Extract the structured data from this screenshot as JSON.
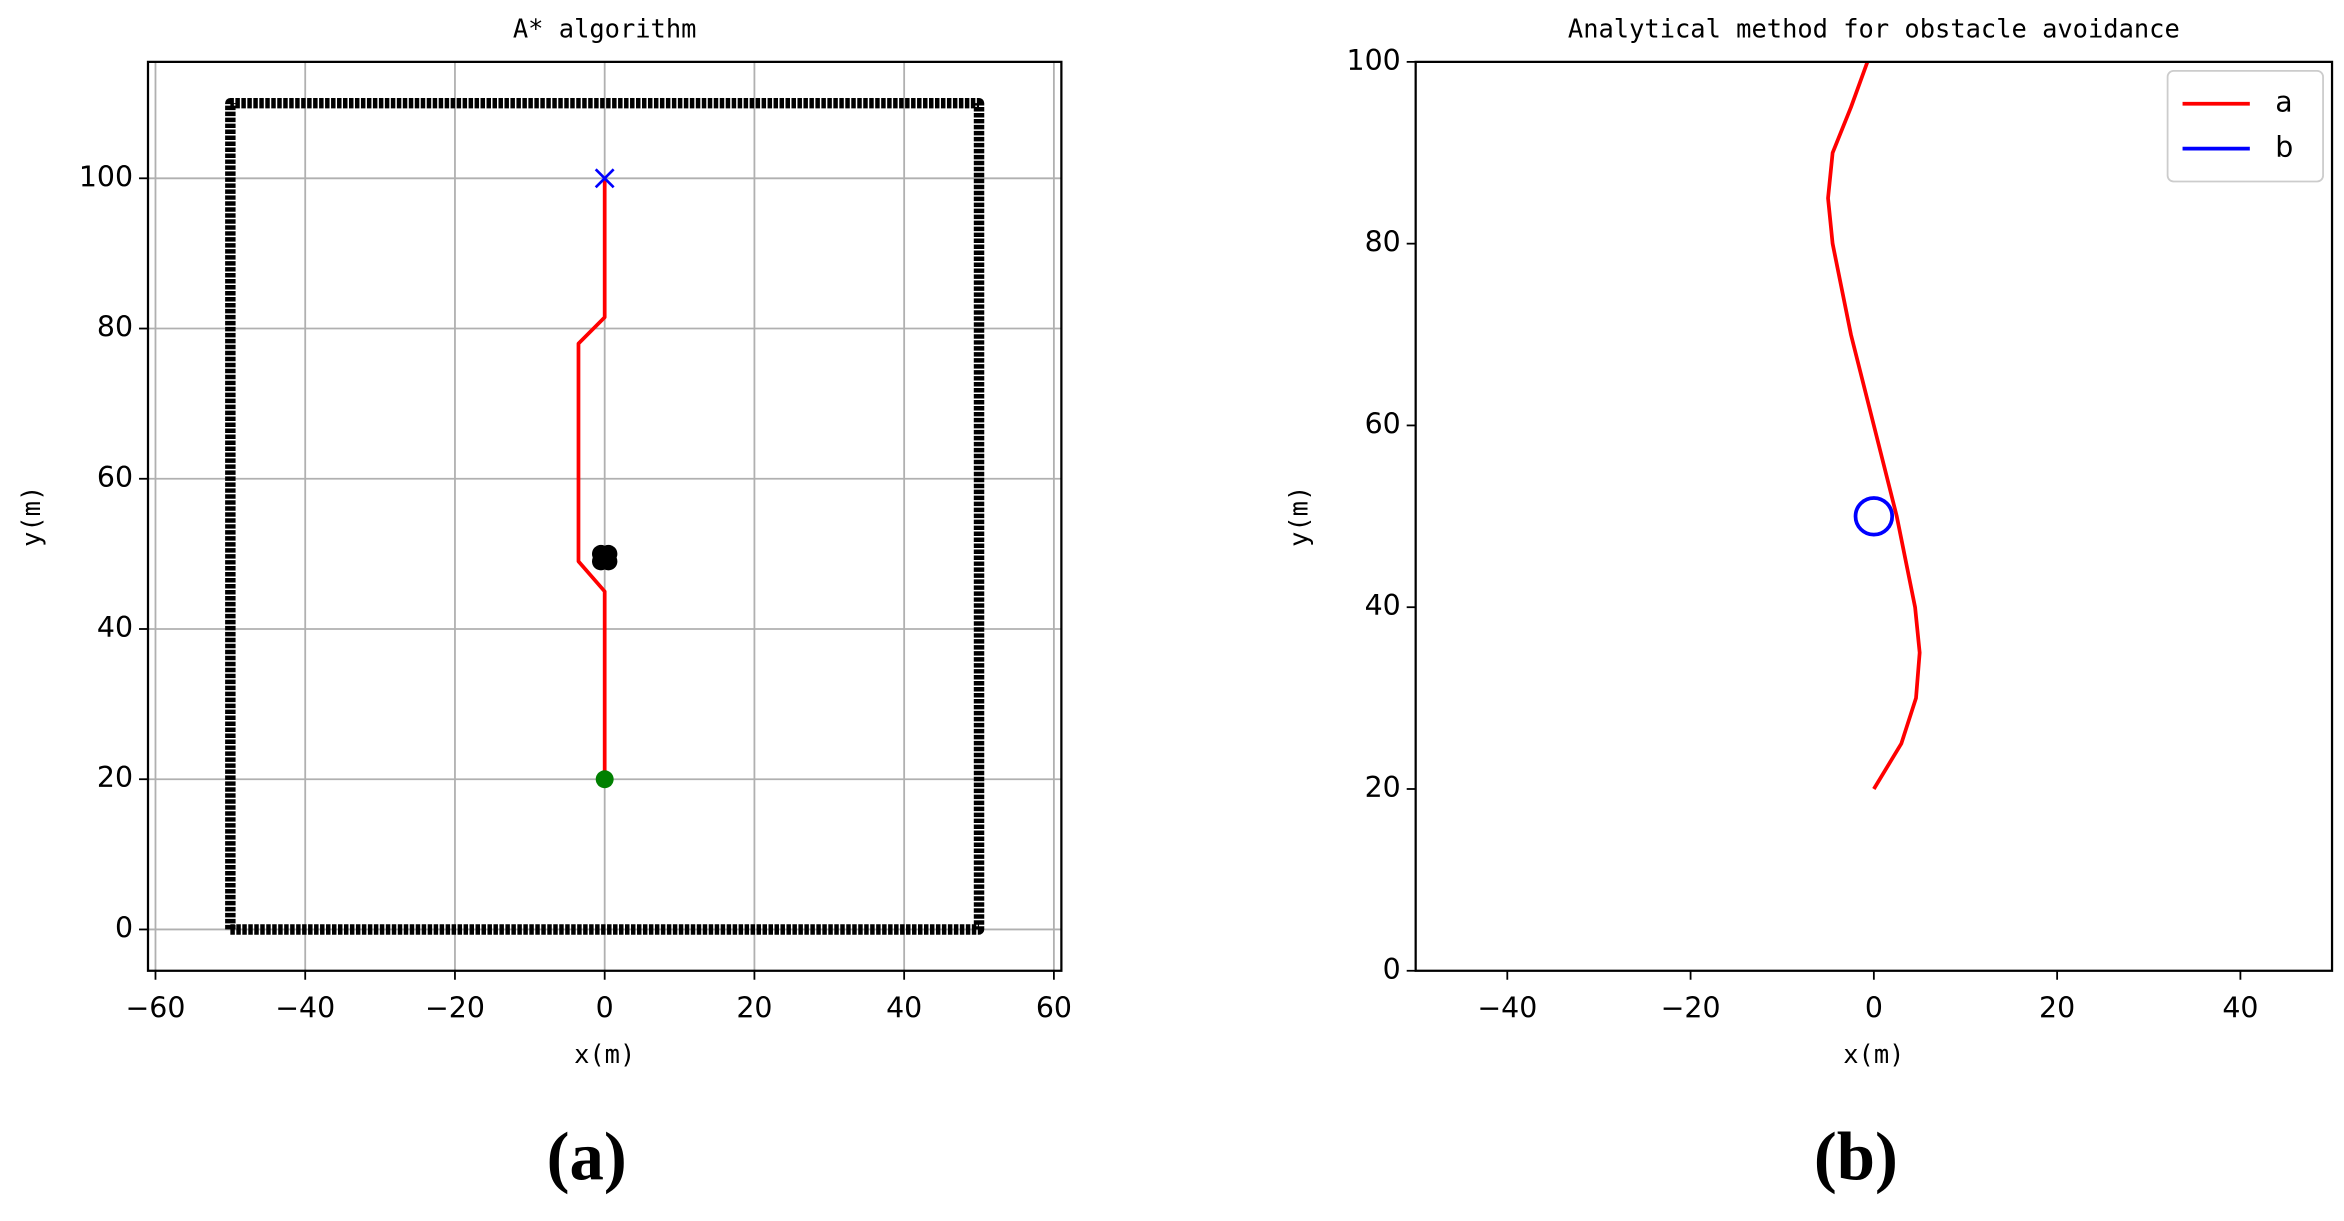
{
  "chart_data": [
    {
      "type": "line",
      "title": "A* algorithm",
      "xlabel": "x(m)",
      "ylabel": "y(m)",
      "caption": "(a)",
      "xlim": [
        -61,
        61
      ],
      "ylim": [
        -5.5,
        115.5
      ],
      "xticks": [
        {
          "value": -60,
          "label": "−60"
        },
        {
          "value": -40,
          "label": "−40"
        },
        {
          "value": -20,
          "label": "−20"
        },
        0,
        20,
        40,
        60
      ],
      "yticks": [
        0,
        20,
        40,
        60,
        80,
        100
      ],
      "grid": true,
      "series": [
        {
          "color": "#000000",
          "linewidth": 7,
          "x": [
            -50,
            50,
            50,
            -50,
            -50
          ],
          "values": [
            0,
            0,
            110,
            110,
            0
          ]
        },
        {
          "color": "#ff0000",
          "linewidth": 2.5,
          "x": [
            0,
            0,
            -3.5,
            -3.5,
            0,
            0
          ],
          "values": [
            20,
            45,
            49,
            78,
            81.5,
            100
          ]
        },
        {
          "color": "#000000",
          "marker": "o",
          "x": [
            -0.5,
            0.5,
            -0.5,
            0.5
          ],
          "values": [
            49,
            49,
            50,
            50
          ]
        },
        {
          "color": "#008000",
          "marker": "o",
          "x": [
            0
          ],
          "values": [
            20
          ]
        },
        {
          "color": "#0000ff",
          "marker": "x",
          "x": [
            0
          ],
          "values": [
            100
          ]
        }
      ]
    },
    {
      "type": "line",
      "title": "Analytical method for obstacle avoidance",
      "xlabel": "x(m)",
      "ylabel": "y(m)",
      "caption": "(b)",
      "xlim": [
        -50,
        50
      ],
      "ylim": [
        0,
        100
      ],
      "xticks": [
        {
          "value": -40,
          "label": "−40"
        },
        {
          "value": -20,
          "label": "−20"
        },
        0,
        20,
        40
      ],
      "yticks": [
        0,
        20,
        40,
        60,
        80,
        100
      ],
      "grid": false,
      "legend": "upper right",
      "series": [
        {
          "name": "a",
          "color": "#ff0000",
          "linewidth": 2.5,
          "x": [
            0,
            3,
            4.6,
            5,
            4.5,
            2.5,
            0,
            -2.5,
            -4.5,
            -5,
            -4.5,
            -2.5,
            -0.7
          ],
          "values": [
            20,
            25,
            30,
            35,
            40,
            50,
            60,
            70,
            80,
            85,
            90,
            95,
            100
          ]
        },
        {
          "name": "b",
          "color": "#0000ff",
          "marker": "circle",
          "x": [
            0
          ],
          "values": [
            50
          ],
          "radius": 2
        }
      ]
    }
  ]
}
